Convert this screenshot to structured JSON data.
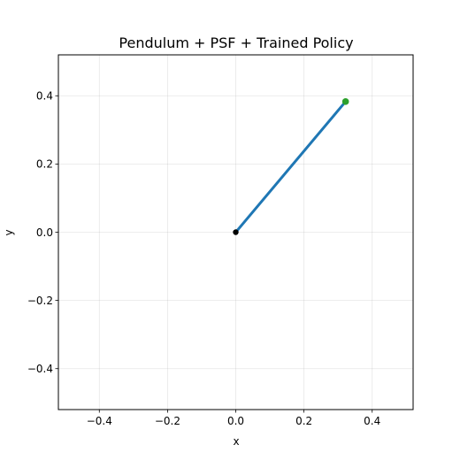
{
  "chart_data": {
    "type": "line",
    "title": "Pendulum + PSF + Trained Policy",
    "xlabel": "x",
    "ylabel": "y",
    "xlim": [
      -0.52,
      0.52
    ],
    "ylim": [
      -0.52,
      0.52
    ],
    "xticks": [
      -0.4,
      -0.2,
      0.0,
      0.2,
      0.4
    ],
    "yticks": [
      -0.4,
      -0.2,
      0.0,
      0.2,
      0.4
    ],
    "xtick_labels": [
      "−0.4",
      "−0.2",
      "0.0",
      "0.2",
      "0.4"
    ],
    "ytick_labels": [
      "−0.4",
      "−0.2",
      "0.0",
      "0.2",
      "0.4"
    ],
    "grid": true,
    "rod": {
      "x": [
        0.0,
        0.322
      ],
      "y": [
        0.0,
        0.383
      ],
      "color": "#1f77b4"
    },
    "pivot": {
      "x": 0.0,
      "y": 0.0,
      "color": "#000000"
    },
    "bob": {
      "x": 0.322,
      "y": 0.383,
      "color": "#2ca02c"
    }
  }
}
